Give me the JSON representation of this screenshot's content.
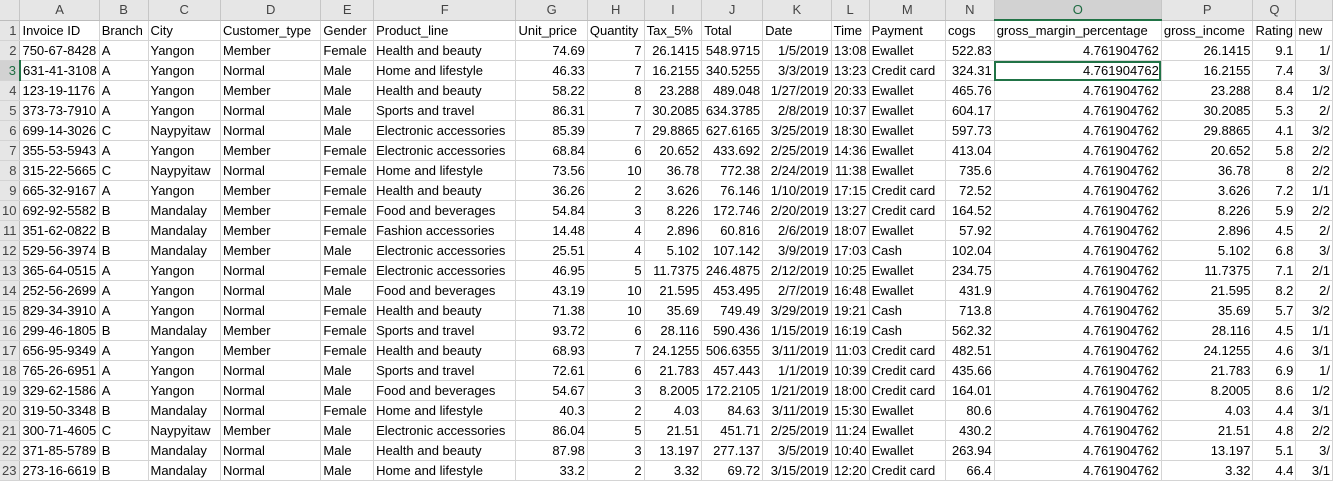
{
  "sheet": {
    "column_letters": [
      "A",
      "B",
      "C",
      "D",
      "E",
      "F",
      "G",
      "H",
      "I",
      "J",
      "K",
      "L",
      "M",
      "N",
      "O",
      "P",
      "Q",
      ""
    ],
    "selected_column": "O",
    "selected_row": "3",
    "columns": [
      {
        "field": "Invoice ID",
        "align": "txt"
      },
      {
        "field": "Branch",
        "align": "txt"
      },
      {
        "field": "City",
        "align": "txt"
      },
      {
        "field": "Customer_type",
        "align": "txt"
      },
      {
        "field": "Gender",
        "align": "txt"
      },
      {
        "field": "Product_line",
        "align": "txt"
      },
      {
        "field": "Unit_price",
        "align": "num"
      },
      {
        "field": "Quantity",
        "align": "num"
      },
      {
        "field": "Tax_5%",
        "align": "num"
      },
      {
        "field": "Total",
        "align": "num"
      },
      {
        "field": "Date",
        "align": "num"
      },
      {
        "field": "Time",
        "align": "num"
      },
      {
        "field": "Payment",
        "align": "txt"
      },
      {
        "field": "cogs",
        "align": "num"
      },
      {
        "field": "gross_margin_percentage",
        "align": "num"
      },
      {
        "field": "gross_income",
        "align": "num"
      },
      {
        "field": "Rating",
        "align": "num"
      },
      {
        "field": "new",
        "align": "num"
      }
    ],
    "rows": [
      {
        "label": "1",
        "cells": [
          "Invoice ID",
          "Branch",
          "City",
          "Customer_type",
          "Gender",
          "Product_line",
          "Unit_price",
          "Quantity",
          "Tax_5%",
          "Total",
          "Date",
          "Time",
          "Payment",
          "cogs",
          "gross_margin_percentage",
          "gross_income",
          "Rating",
          "new"
        ],
        "header": true
      },
      {
        "label": "2",
        "cells": [
          "750-67-8428",
          "A",
          "Yangon",
          "Member",
          "Female",
          "Health and beauty",
          "74.69",
          "7",
          "26.1415",
          "548.9715",
          "1/5/2019",
          "13:08",
          "Ewallet",
          "522.83",
          "4.761904762",
          "26.1415",
          "9.1",
          "1/"
        ]
      },
      {
        "label": "3",
        "cells": [
          "631-41-3108",
          "A",
          "Yangon",
          "Normal",
          "Male",
          "Home and lifestyle",
          "46.33",
          "7",
          "16.2155",
          "340.5255",
          "3/3/2019",
          "13:23",
          "Credit card",
          "324.31",
          "4.761904762",
          "16.2155",
          "7.4",
          "3/"
        ]
      },
      {
        "label": "4",
        "cells": [
          "123-19-1176",
          "A",
          "Yangon",
          "Member",
          "Male",
          "Health and beauty",
          "58.22",
          "8",
          "23.288",
          "489.048",
          "1/27/2019",
          "20:33",
          "Ewallet",
          "465.76",
          "4.761904762",
          "23.288",
          "8.4",
          "1/2"
        ]
      },
      {
        "label": "5",
        "cells": [
          "373-73-7910",
          "A",
          "Yangon",
          "Normal",
          "Male",
          "Sports and travel",
          "86.31",
          "7",
          "30.2085",
          "634.3785",
          "2/8/2019",
          "10:37",
          "Ewallet",
          "604.17",
          "4.761904762",
          "30.2085",
          "5.3",
          "2/"
        ]
      },
      {
        "label": "6",
        "cells": [
          "699-14-3026",
          "C",
          "Naypyitaw",
          "Normal",
          "Male",
          "Electronic accessories",
          "85.39",
          "7",
          "29.8865",
          "627.6165",
          "3/25/2019",
          "18:30",
          "Ewallet",
          "597.73",
          "4.761904762",
          "29.8865",
          "4.1",
          "3/2"
        ]
      },
      {
        "label": "7",
        "cells": [
          "355-53-5943",
          "A",
          "Yangon",
          "Member",
          "Female",
          "Electronic accessories",
          "68.84",
          "6",
          "20.652",
          "433.692",
          "2/25/2019",
          "14:36",
          "Ewallet",
          "413.04",
          "4.761904762",
          "20.652",
          "5.8",
          "2/2"
        ]
      },
      {
        "label": "8",
        "cells": [
          "315-22-5665",
          "C",
          "Naypyitaw",
          "Normal",
          "Female",
          "Home and lifestyle",
          "73.56",
          "10",
          "36.78",
          "772.38",
          "2/24/2019",
          "11:38",
          "Ewallet",
          "735.6",
          "4.761904762",
          "36.78",
          "8",
          "2/2"
        ]
      },
      {
        "label": "9",
        "cells": [
          "665-32-9167",
          "A",
          "Yangon",
          "Member",
          "Female",
          "Health and beauty",
          "36.26",
          "2",
          "3.626",
          "76.146",
          "1/10/2019",
          "17:15",
          "Credit card",
          "72.52",
          "4.761904762",
          "3.626",
          "7.2",
          "1/1"
        ]
      },
      {
        "label": "10",
        "cells": [
          "692-92-5582",
          "B",
          "Mandalay",
          "Member",
          "Female",
          "Food and beverages",
          "54.84",
          "3",
          "8.226",
          "172.746",
          "2/20/2019",
          "13:27",
          "Credit card",
          "164.52",
          "4.761904762",
          "8.226",
          "5.9",
          "2/2"
        ]
      },
      {
        "label": "11",
        "cells": [
          "351-62-0822",
          "B",
          "Mandalay",
          "Member",
          "Female",
          "Fashion accessories",
          "14.48",
          "4",
          "2.896",
          "60.816",
          "2/6/2019",
          "18:07",
          "Ewallet",
          "57.92",
          "4.761904762",
          "2.896",
          "4.5",
          "2/"
        ]
      },
      {
        "label": "12",
        "cells": [
          "529-56-3974",
          "B",
          "Mandalay",
          "Member",
          "Male",
          "Electronic accessories",
          "25.51",
          "4",
          "5.102",
          "107.142",
          "3/9/2019",
          "17:03",
          "Cash",
          "102.04",
          "4.761904762",
          "5.102",
          "6.8",
          "3/"
        ]
      },
      {
        "label": "13",
        "cells": [
          "365-64-0515",
          "A",
          "Yangon",
          "Normal",
          "Female",
          "Electronic accessories",
          "46.95",
          "5",
          "11.7375",
          "246.4875",
          "2/12/2019",
          "10:25",
          "Ewallet",
          "234.75",
          "4.761904762",
          "11.7375",
          "7.1",
          "2/1"
        ]
      },
      {
        "label": "14",
        "cells": [
          "252-56-2699",
          "A",
          "Yangon",
          "Normal",
          "Male",
          "Food and beverages",
          "43.19",
          "10",
          "21.595",
          "453.495",
          "2/7/2019",
          "16:48",
          "Ewallet",
          "431.9",
          "4.761904762",
          "21.595",
          "8.2",
          "2/"
        ]
      },
      {
        "label": "15",
        "cells": [
          "829-34-3910",
          "A",
          "Yangon",
          "Normal",
          "Female",
          "Health and beauty",
          "71.38",
          "10",
          "35.69",
          "749.49",
          "3/29/2019",
          "19:21",
          "Cash",
          "713.8",
          "4.761904762",
          "35.69",
          "5.7",
          "3/2"
        ]
      },
      {
        "label": "16",
        "cells": [
          "299-46-1805",
          "B",
          "Mandalay",
          "Member",
          "Female",
          "Sports and travel",
          "93.72",
          "6",
          "28.116",
          "590.436",
          "1/15/2019",
          "16:19",
          "Cash",
          "562.32",
          "4.761904762",
          "28.116",
          "4.5",
          "1/1"
        ]
      },
      {
        "label": "17",
        "cells": [
          "656-95-9349",
          "A",
          "Yangon",
          "Member",
          "Female",
          "Health and beauty",
          "68.93",
          "7",
          "24.1255",
          "506.6355",
          "3/11/2019",
          "11:03",
          "Credit card",
          "482.51",
          "4.761904762",
          "24.1255",
          "4.6",
          "3/1"
        ]
      },
      {
        "label": "18",
        "cells": [
          "765-26-6951",
          "A",
          "Yangon",
          "Normal",
          "Male",
          "Sports and travel",
          "72.61",
          "6",
          "21.783",
          "457.443",
          "1/1/2019",
          "10:39",
          "Credit card",
          "435.66",
          "4.761904762",
          "21.783",
          "6.9",
          "1/"
        ]
      },
      {
        "label": "19",
        "cells": [
          "329-62-1586",
          "A",
          "Yangon",
          "Normal",
          "Male",
          "Food and beverages",
          "54.67",
          "3",
          "8.2005",
          "172.2105",
          "1/21/2019",
          "18:00",
          "Credit card",
          "164.01",
          "4.761904762",
          "8.2005",
          "8.6",
          "1/2"
        ]
      },
      {
        "label": "20",
        "cells": [
          "319-50-3348",
          "B",
          "Mandalay",
          "Normal",
          "Female",
          "Home and lifestyle",
          "40.3",
          "2",
          "4.03",
          "84.63",
          "3/11/2019",
          "15:30",
          "Ewallet",
          "80.6",
          "4.761904762",
          "4.03",
          "4.4",
          "3/1"
        ]
      },
      {
        "label": "21",
        "cells": [
          "300-71-4605",
          "C",
          "Naypyitaw",
          "Member",
          "Male",
          "Electronic accessories",
          "86.04",
          "5",
          "21.51",
          "451.71",
          "2/25/2019",
          "11:24",
          "Ewallet",
          "430.2",
          "4.761904762",
          "21.51",
          "4.8",
          "2/2"
        ]
      },
      {
        "label": "22",
        "cells": [
          "371-85-5789",
          "B",
          "Mandalay",
          "Normal",
          "Male",
          "Health and beauty",
          "87.98",
          "3",
          "13.197",
          "277.137",
          "3/5/2019",
          "10:40",
          "Ewallet",
          "263.94",
          "4.761904762",
          "13.197",
          "5.1",
          "3/"
        ]
      },
      {
        "label": "23",
        "cells": [
          "273-16-6619",
          "B",
          "Mandalay",
          "Normal",
          "Male",
          "Home and lifestyle",
          "33.2",
          "2",
          "3.32",
          "69.72",
          "3/15/2019",
          "12:20",
          "Credit card",
          "66.4",
          "4.761904762",
          "3.32",
          "4.4",
          "3/1"
        ]
      }
    ]
  }
}
